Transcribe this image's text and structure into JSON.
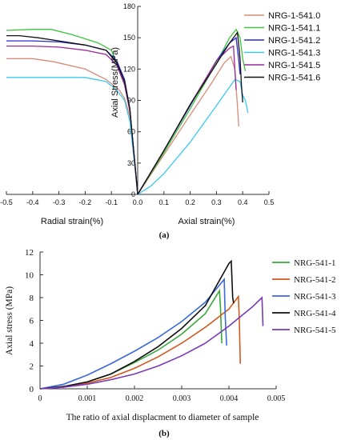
{
  "chart_data": [
    {
      "type": "line",
      "panel_label": "(a)",
      "xlabel_left": "Radial strain(%)",
      "xlabel_right": "Axial strain(%)",
      "ylabel": "Axial Stress(MPa)",
      "xlim": [
        -0.5,
        0.5
      ],
      "ylim": [
        0,
        180
      ],
      "x_ticks": [
        "-0.5",
        "-0.4",
        "-0.3",
        "-0.2",
        "-0.1",
        "0.0",
        "0.1",
        "0.2",
        "0.3",
        "0.4",
        "0.5"
      ],
      "y_ticks": [
        "0",
        "30",
        "60",
        "90",
        "120",
        "150",
        "180"
      ],
      "legend_position": "top-right",
      "series": [
        {
          "name": "NRG-1-541.0",
          "color": "#d98a7a",
          "radial": [
            [
              -0.5,
              130
            ],
            [
              -0.4,
              130
            ],
            [
              -0.32,
              127
            ],
            [
              -0.2,
              120
            ],
            [
              -0.12,
              110
            ],
            [
              -0.07,
              100
            ],
            [
              -0.05,
              92
            ],
            [
              -0.03,
              75
            ],
            [
              -0.02,
              50
            ],
            [
              -0.01,
              25
            ],
            [
              0,
              0
            ]
          ],
          "axial": [
            [
              0,
              0
            ],
            [
              0.1,
              38
            ],
            [
              0.2,
              76
            ],
            [
              0.28,
              106
            ],
            [
              0.33,
              126
            ],
            [
              0.355,
              132
            ],
            [
              0.37,
              120
            ],
            [
              0.38,
              85
            ],
            [
              0.385,
              65
            ]
          ]
        },
        {
          "name": "NRG-1-541.1",
          "color": "#3cc43c",
          "radial": [
            [
              -0.5,
              157
            ],
            [
              -0.4,
              158
            ],
            [
              -0.33,
              158
            ],
            [
              -0.25,
              153
            ],
            [
              -0.15,
              145
            ],
            [
              -0.1,
              138
            ],
            [
              -0.08,
              125
            ],
            [
              -0.05,
              105
            ],
            [
              -0.03,
              80
            ],
            [
              -0.02,
              55
            ],
            [
              -0.01,
              28
            ],
            [
              0,
              0
            ]
          ],
          "axial": [
            [
              0,
              0
            ],
            [
              0.1,
              40
            ],
            [
              0.2,
              82
            ],
            [
              0.3,
              126
            ],
            [
              0.35,
              150
            ],
            [
              0.375,
              158
            ],
            [
              0.39,
              150
            ],
            [
              0.4,
              130
            ],
            [
              0.41,
              118
            ]
          ]
        },
        {
          "name": "NRG-1-541.2",
          "color": "#2a2ad0",
          "radial": [
            [
              -0.5,
              147
            ],
            [
              -0.4,
              147
            ],
            [
              -0.3,
              146
            ],
            [
              -0.2,
              143
            ],
            [
              -0.12,
              138
            ],
            [
              -0.08,
              128
            ],
            [
              -0.05,
              110
            ],
            [
              -0.03,
              82
            ],
            [
              -0.02,
              55
            ],
            [
              -0.01,
              28
            ],
            [
              0,
              0
            ]
          ],
          "axial": [
            [
              0,
              0
            ],
            [
              0.1,
              42
            ],
            [
              0.2,
              85
            ],
            [
              0.3,
              128
            ],
            [
              0.35,
              145
            ],
            [
              0.375,
              150
            ],
            [
              0.385,
              128
            ],
            [
              0.39,
              115
            ]
          ]
        },
        {
          "name": "NRG-1-541.3",
          "color": "#3cc8f0",
          "radial": [
            [
              -0.5,
              112
            ],
            [
              -0.4,
              112
            ],
            [
              -0.3,
              112
            ],
            [
              -0.2,
              112
            ],
            [
              -0.12,
              108
            ],
            [
              -0.08,
              100
            ],
            [
              -0.05,
              90
            ],
            [
              -0.03,
              70
            ],
            [
              -0.02,
              48
            ],
            [
              -0.01,
              25
            ],
            [
              0,
              0
            ]
          ],
          "axial": [
            [
              0,
              0
            ],
            [
              0.05,
              8
            ],
            [
              0.1,
              20
            ],
            [
              0.2,
              50
            ],
            [
              0.3,
              85
            ],
            [
              0.37,
              110
            ],
            [
              0.39,
              108
            ],
            [
              0.4,
              95
            ],
            [
              0.41,
              90
            ],
            [
              0.42,
              78
            ]
          ]
        },
        {
          "name": "NRG-1-541.5",
          "color": "#9a2a9a",
          "radial": [
            [
              -0.5,
              142
            ],
            [
              -0.4,
              142
            ],
            [
              -0.3,
              141
            ],
            [
              -0.2,
              138
            ],
            [
              -0.12,
              134
            ],
            [
              -0.08,
              124
            ],
            [
              -0.05,
              105
            ],
            [
              -0.03,
              80
            ],
            [
              -0.02,
              55
            ],
            [
              -0.01,
              28
            ],
            [
              0,
              0
            ]
          ],
          "axial": [
            [
              0,
              0
            ],
            [
              0.1,
              42
            ],
            [
              0.2,
              86
            ],
            [
              0.3,
              128
            ],
            [
              0.35,
              140
            ],
            [
              0.365,
              142
            ],
            [
              0.37,
              120
            ],
            [
              0.375,
              100
            ]
          ]
        },
        {
          "name": "NRG-1-541.6",
          "color": "#111111",
          "radial": [
            [
              -0.5,
              152
            ],
            [
              -0.45,
              152
            ],
            [
              -0.38,
              150
            ],
            [
              -0.3,
              147
            ],
            [
              -0.2,
              143
            ],
            [
              -0.12,
              138
            ],
            [
              -0.08,
              126
            ],
            [
              -0.05,
              108
            ],
            [
              -0.03,
              82
            ],
            [
              -0.02,
              55
            ],
            [
              -0.01,
              28
            ],
            [
              0,
              0
            ]
          ],
          "axial": [
            [
              0,
              0
            ],
            [
              0.1,
              42
            ],
            [
              0.2,
              86
            ],
            [
              0.3,
              125
            ],
            [
              0.35,
              145
            ],
            [
              0.38,
              155
            ],
            [
              0.39,
              130
            ],
            [
              0.395,
              105
            ],
            [
              0.4,
              88
            ]
          ]
        }
      ]
    },
    {
      "type": "line",
      "panel_label": "(b)",
      "xlabel": "The ratio of axial displacment to diameter of sample",
      "ylabel": "Axial stress (MPa)",
      "xlim": [
        0,
        0.005
      ],
      "ylim": [
        0,
        12
      ],
      "x_ticks": [
        "0",
        "0.001",
        "0.002",
        "0.003",
        "0.004",
        "0.005"
      ],
      "y_ticks": [
        "0",
        "2",
        "4",
        "6",
        "8",
        "10",
        "12"
      ],
      "legend_position": "right",
      "series": [
        {
          "name": "NRG-541-1",
          "color": "#3aa83a",
          "points": [
            [
              0,
              0
            ],
            [
              0.0005,
              0.2
            ],
            [
              0.001,
              0.6
            ],
            [
              0.0015,
              1.3
            ],
            [
              0.002,
              2.3
            ],
            [
              0.0025,
              3.4
            ],
            [
              0.003,
              4.8
            ],
            [
              0.0035,
              6.6
            ],
            [
              0.0038,
              8.6
            ],
            [
              0.00382,
              7.2
            ],
            [
              0.00385,
              4.0
            ]
          ]
        },
        {
          "name": "NRG-541-2",
          "color": "#d05a20",
          "points": [
            [
              0,
              0
            ],
            [
              0.0005,
              0.15
            ],
            [
              0.001,
              0.5
            ],
            [
              0.0015,
              1.0
            ],
            [
              0.002,
              1.8
            ],
            [
              0.0025,
              2.8
            ],
            [
              0.003,
              4.0
            ],
            [
              0.0035,
              5.4
            ],
            [
              0.004,
              7.0
            ],
            [
              0.0042,
              8.1
            ],
            [
              0.00422,
              6.0
            ],
            [
              0.00424,
              2.2
            ]
          ]
        },
        {
          "name": "NRG-541-3",
          "color": "#3a6ad8",
          "points": [
            [
              0,
              0
            ],
            [
              0.0005,
              0.4
            ],
            [
              0.001,
              1.2
            ],
            [
              0.0015,
              2.2
            ],
            [
              0.002,
              3.3
            ],
            [
              0.0025,
              4.5
            ],
            [
              0.003,
              5.9
            ],
            [
              0.0035,
              7.6
            ],
            [
              0.0039,
              9.6
            ],
            [
              0.00392,
              6.5
            ],
            [
              0.00395,
              3.8
            ]
          ]
        },
        {
          "name": "NRG-541-4",
          "color": "#111111",
          "points": [
            [
              0,
              0
            ],
            [
              0.0005,
              0.2
            ],
            [
              0.001,
              0.6
            ],
            [
              0.0015,
              1.3
            ],
            [
              0.002,
              2.4
            ],
            [
              0.0025,
              3.7
            ],
            [
              0.003,
              5.3
            ],
            [
              0.0035,
              7.3
            ],
            [
              0.004,
              11.0
            ],
            [
              0.00405,
              11.2
            ],
            [
              0.00408,
              8.0
            ],
            [
              0.0041,
              7.5
            ]
          ]
        },
        {
          "name": "NRG-541-5",
          "color": "#7a3ab8",
          "points": [
            [
              0,
              0
            ],
            [
              0.0005,
              0.15
            ],
            [
              0.001,
              0.4
            ],
            [
              0.0015,
              0.8
            ],
            [
              0.002,
              1.3
            ],
            [
              0.0025,
              2.0
            ],
            [
              0.003,
              2.9
            ],
            [
              0.0035,
              4.0
            ],
            [
              0.004,
              5.5
            ],
            [
              0.0045,
              7.2
            ],
            [
              0.0047,
              8.0
            ],
            [
              0.00472,
              5.5
            ]
          ]
        }
      ]
    }
  ]
}
